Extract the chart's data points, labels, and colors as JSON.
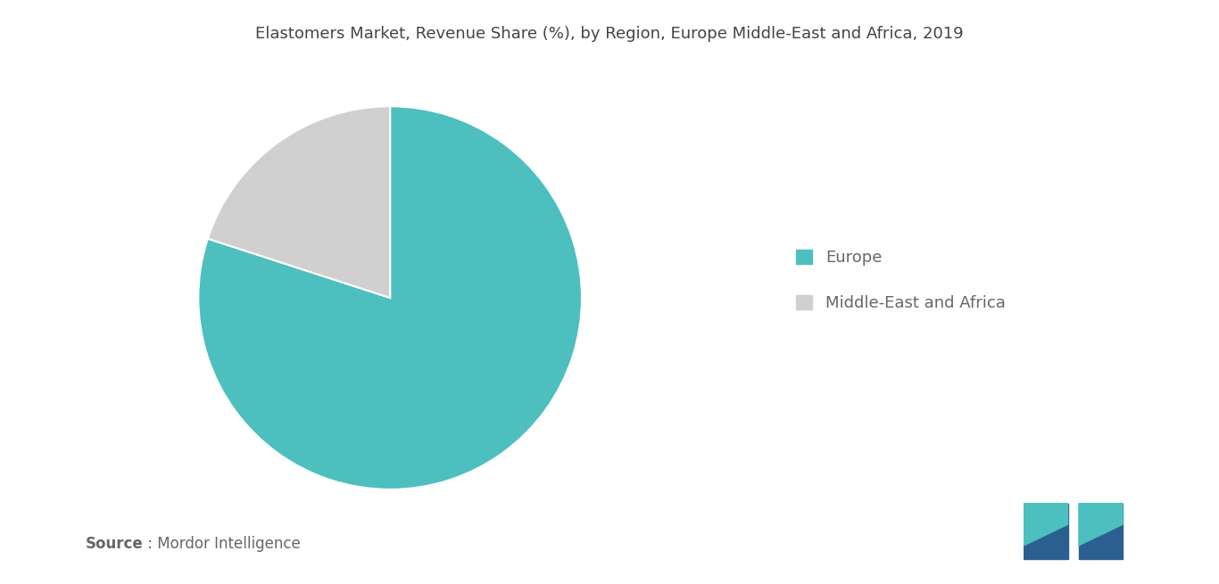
{
  "title": "Elastomers Market, Revenue Share (%), by Region, Europe Middle-East and Africa, 2019",
  "slices": [
    {
      "label": "Europe",
      "value": 80,
      "color": "#4DBFBF"
    },
    {
      "label": "Middle-East and Africa",
      "value": 20,
      "color": "#D0D0D0"
    }
  ],
  "legend_labels": [
    "Europe",
    "Middle-East and Africa"
  ],
  "legend_colors": [
    "#4DBFBF",
    "#D0D0D0"
  ],
  "source_bold": "Source",
  "source_rest": " : Mordor Intelligence",
  "background_color": "#ffffff",
  "title_fontsize": 13,
  "legend_fontsize": 13,
  "source_fontsize": 12,
  "startangle": 90,
  "logo_dark_blue": "#2B5F8F",
  "logo_teal": "#4DBFBF"
}
